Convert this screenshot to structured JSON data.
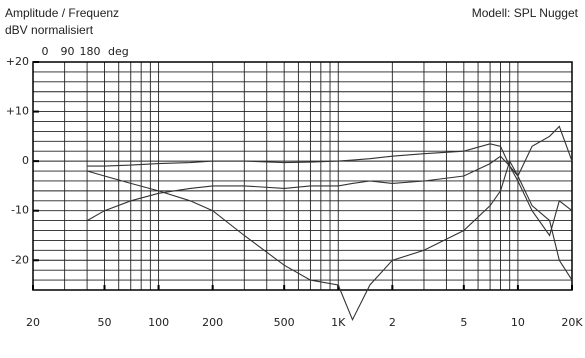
{
  "chart_data": {
    "type": "line",
    "title": "Amplitude / Frequenz",
    "y_label": "dBV normalisiert",
    "subtitle": "Modell: SPL Nugget",
    "phase_ticks": [
      0,
      90,
      180
    ],
    "phase_unit": "deg",
    "log_x": true,
    "xlim": [
      20,
      20000
    ],
    "ylim": [
      -26,
      20
    ],
    "xticks": [
      20,
      50,
      100,
      200,
      500,
      {
        "value": 1000,
        "label": "1K"
      },
      {
        "value": 2000,
        "label": "2"
      },
      {
        "value": 5000,
        "label": "5"
      },
      {
        "value": 10000,
        "label": "10"
      },
      {
        "value": 20000,
        "label": "20K"
      }
    ],
    "yticks": [
      {
        "value": 20,
        "label": "+20"
      },
      {
        "value": 10,
        "label": "+10"
      },
      0,
      -10,
      -20
    ],
    "xgrid": [
      20,
      30,
      40,
      50,
      60,
      70,
      80,
      90,
      100,
      200,
      300,
      400,
      500,
      600,
      700,
      800,
      900,
      1000,
      2000,
      3000,
      4000,
      5000,
      6000,
      7000,
      8000,
      9000,
      10000,
      20000
    ],
    "ygrid": [
      -26,
      -24,
      -22,
      -20,
      -18,
      -16,
      -14,
      -12,
      -10,
      -8,
      -6,
      -4,
      -2,
      0,
      2,
      4,
      6,
      8,
      10,
      12,
      14,
      16,
      18,
      20
    ],
    "x": [
      40,
      50,
      70,
      100,
      150,
      200,
      300,
      500,
      700,
      1000,
      1200,
      1500,
      2000,
      3000,
      5000,
      7000,
      8000,
      9000,
      10000,
      12000,
      15000,
      17000,
      20000
    ],
    "series": [
      {
        "color": "#333333",
        "values": [
          -1,
          -1,
          -0.8,
          -0.5,
          -0.3,
          0,
          0,
          -0.3,
          -0.2,
          0,
          0.2,
          0.5,
          1,
          1.5,
          2,
          3.5,
          3,
          -1,
          -3,
          3,
          5,
          7,
          0
        ]
      },
      {
        "color": "#333333",
        "values": [
          -12,
          -10,
          -8,
          -6.5,
          -5.5,
          -5,
          -5,
          -5.5,
          -5,
          -5,
          -4.5,
          -4,
          -4.5,
          -4,
          -3,
          -0.5,
          1,
          -1,
          -4,
          -10,
          -15,
          -8,
          -10
        ]
      },
      {
        "color": "#333333",
        "values": [
          -2,
          -3,
          -4.5,
          -6,
          -8,
          -10,
          -15,
          -21,
          -24,
          -25,
          -32,
          -25,
          -20,
          -18,
          -14,
          -9,
          -6,
          0,
          -3,
          -9,
          -12,
          -20,
          -24
        ]
      }
    ]
  }
}
